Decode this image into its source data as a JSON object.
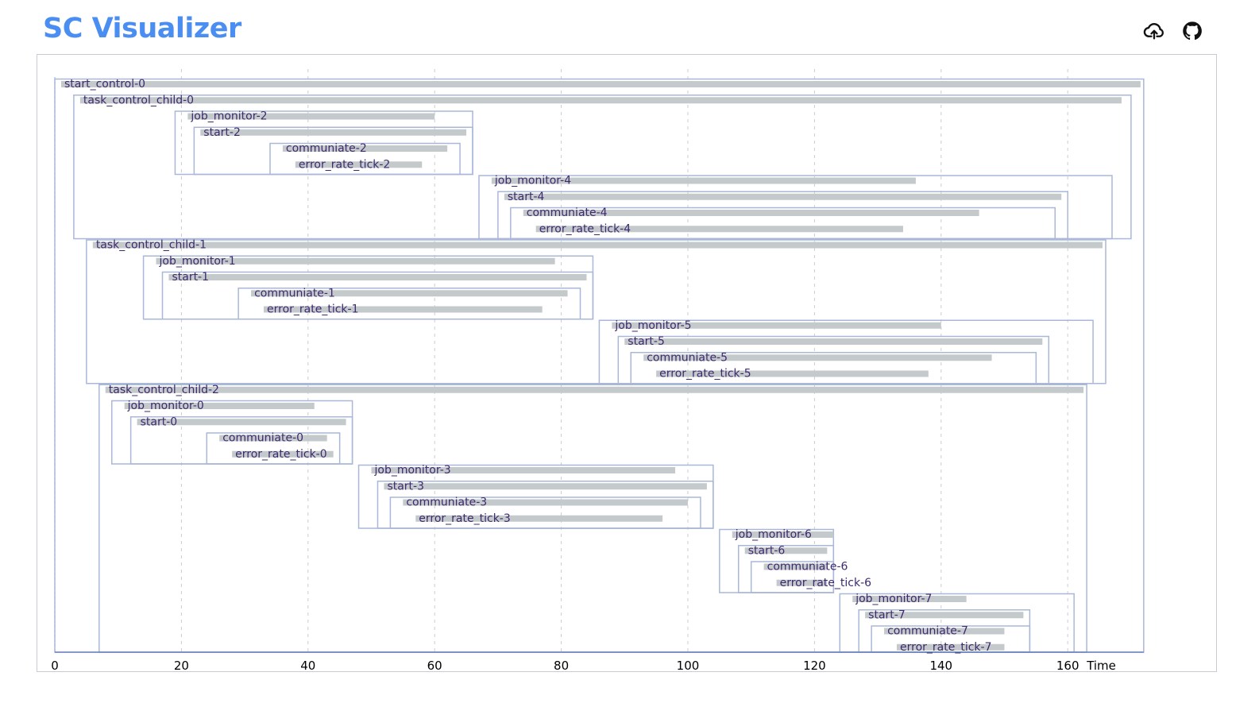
{
  "header": {
    "title": "SC Visualizer",
    "upload_icon": "cloud-upload-icon",
    "github_icon": "github-icon"
  },
  "colors": {
    "title": "#4a8ef2",
    "bar": "#c4cacc",
    "box": "#a9b8d8",
    "label": "#3d2a6e",
    "grid": "#cccccc"
  },
  "chart_data": {
    "type": "gantt",
    "xlabel": "Time",
    "xlim": [
      0,
      172
    ],
    "x_ticks": [
      0,
      20,
      40,
      60,
      80,
      100,
      120,
      140,
      160
    ],
    "grid": "vertical-dashed",
    "spans": [
      {
        "name": "start_control-0",
        "row": 0,
        "start": 1,
        "end": 171.5
      },
      {
        "name": "task_control_child-0",
        "row": 1,
        "start": 4,
        "end": 168.5
      },
      {
        "name": "job_monitor-2",
        "row": 2,
        "start": 21,
        "end": 60
      },
      {
        "name": "start-2",
        "row": 3,
        "start": 23,
        "end": 65
      },
      {
        "name": "communiate-2",
        "row": 4,
        "start": 36,
        "end": 62
      },
      {
        "name": "error_rate_tick-2",
        "row": 5,
        "start": 38,
        "end": 58
      },
      {
        "name": "job_monitor-4",
        "row": 6,
        "start": 69,
        "end": 136
      },
      {
        "name": "start-4",
        "row": 7,
        "start": 71,
        "end": 159
      },
      {
        "name": "communiate-4",
        "row": 8,
        "start": 74,
        "end": 146
      },
      {
        "name": "error_rate_tick-4",
        "row": 9,
        "start": 76,
        "end": 134
      },
      {
        "name": "task_control_child-1",
        "row": 10,
        "start": 6,
        "end": 165.5
      },
      {
        "name": "job_monitor-1",
        "row": 11,
        "start": 16,
        "end": 79
      },
      {
        "name": "start-1",
        "row": 12,
        "start": 18,
        "end": 84
      },
      {
        "name": "communiate-1",
        "row": 13,
        "start": 31,
        "end": 81
      },
      {
        "name": "error_rate_tick-1",
        "row": 14,
        "start": 33,
        "end": 77
      },
      {
        "name": "job_monitor-5",
        "row": 15,
        "start": 88,
        "end": 140
      },
      {
        "name": "start-5",
        "row": 16,
        "start": 90,
        "end": 156
      },
      {
        "name": "communiate-5",
        "row": 17,
        "start": 93,
        "end": 148
      },
      {
        "name": "error_rate_tick-5",
        "row": 18,
        "start": 95,
        "end": 138
      },
      {
        "name": "task_control_child-2",
        "row": 19,
        "start": 8,
        "end": 162.5
      },
      {
        "name": "job_monitor-0",
        "row": 20,
        "start": 11,
        "end": 41
      },
      {
        "name": "start-0",
        "row": 21,
        "start": 13,
        "end": 46
      },
      {
        "name": "communiate-0",
        "row": 22,
        "start": 26,
        "end": 43
      },
      {
        "name": "error_rate_tick-0",
        "row": 23,
        "start": 28,
        "end": 44
      },
      {
        "name": "job_monitor-3",
        "row": 24,
        "start": 50,
        "end": 98
      },
      {
        "name": "start-3",
        "row": 25,
        "start": 52,
        "end": 103
      },
      {
        "name": "communiate-3",
        "row": 26,
        "start": 55,
        "end": 100
      },
      {
        "name": "error_rate_tick-3",
        "row": 27,
        "start": 57,
        "end": 96
      },
      {
        "name": "job_monitor-6",
        "row": 28,
        "start": 107,
        "end": 123
      },
      {
        "name": "start-6",
        "row": 29,
        "start": 109,
        "end": 122
      },
      {
        "name": "communiate-6",
        "row": 30,
        "start": 112,
        "end": 122
      },
      {
        "name": "error_rate_tick-6",
        "row": 31,
        "start": 114,
        "end": 122
      },
      {
        "name": "job_monitor-7",
        "row": 32,
        "start": 126,
        "end": 144
      },
      {
        "name": "start-7",
        "row": 33,
        "start": 128,
        "end": 153
      },
      {
        "name": "communiate-7",
        "row": 34,
        "start": 131,
        "end": 150
      },
      {
        "name": "error_rate_tick-7",
        "row": 35,
        "start": 133,
        "end": 150
      }
    ],
    "groups": [
      {
        "row_start": 0,
        "row_end": 35,
        "start": 0,
        "end": 172
      },
      {
        "row_start": 1,
        "row_end": 9,
        "start": 3,
        "end": 170
      },
      {
        "row_start": 2,
        "row_end": 5,
        "start": 19,
        "end": 66
      },
      {
        "row_start": 3,
        "row_end": 5,
        "start": 22,
        "end": 66
      },
      {
        "row_start": 4,
        "row_end": 5,
        "start": 34,
        "end": 64
      },
      {
        "row_start": 6,
        "row_end": 9,
        "start": 67,
        "end": 167
      },
      {
        "row_start": 7,
        "row_end": 9,
        "start": 70,
        "end": 160
      },
      {
        "row_start": 8,
        "row_end": 9,
        "start": 72,
        "end": 158
      },
      {
        "row_start": 10,
        "row_end": 18,
        "start": 5,
        "end": 166
      },
      {
        "row_start": 11,
        "row_end": 14,
        "start": 14,
        "end": 85
      },
      {
        "row_start": 12,
        "row_end": 14,
        "start": 17,
        "end": 85
      },
      {
        "row_start": 13,
        "row_end": 14,
        "start": 29,
        "end": 83
      },
      {
        "row_start": 15,
        "row_end": 18,
        "start": 86,
        "end": 164
      },
      {
        "row_start": 16,
        "row_end": 18,
        "start": 89,
        "end": 157
      },
      {
        "row_start": 17,
        "row_end": 18,
        "start": 91,
        "end": 155
      },
      {
        "row_start": 19,
        "row_end": 35,
        "start": 7,
        "end": 163
      },
      {
        "row_start": 20,
        "row_end": 23,
        "start": 9,
        "end": 47
      },
      {
        "row_start": 21,
        "row_end": 23,
        "start": 12,
        "end": 47
      },
      {
        "row_start": 22,
        "row_end": 23,
        "start": 24,
        "end": 45
      },
      {
        "row_start": 24,
        "row_end": 27,
        "start": 48,
        "end": 104
      },
      {
        "row_start": 25,
        "row_end": 27,
        "start": 51,
        "end": 104
      },
      {
        "row_start": 26,
        "row_end": 27,
        "start": 53,
        "end": 102
      },
      {
        "row_start": 28,
        "row_end": 31,
        "start": 105,
        "end": 123
      },
      {
        "row_start": 29,
        "row_end": 31,
        "start": 108,
        "end": 123
      },
      {
        "row_start": 30,
        "row_end": 31,
        "start": 110,
        "end": 123
      },
      {
        "row_start": 32,
        "row_end": 35,
        "start": 124,
        "end": 161
      },
      {
        "row_start": 33,
        "row_end": 35,
        "start": 127,
        "end": 154
      },
      {
        "row_start": 34,
        "row_end": 35,
        "start": 129,
        "end": 154
      }
    ]
  }
}
